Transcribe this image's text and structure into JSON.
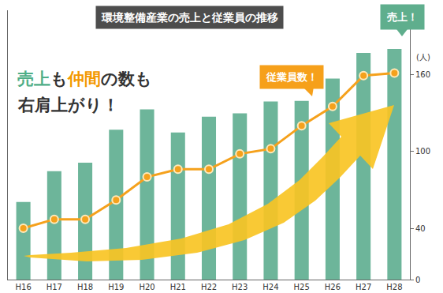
{
  "chart_data": {
    "type": "bar",
    "title": "環境整備産業の売上と従業員の推移",
    "categories": [
      "H16",
      "H17",
      "H18",
      "H19",
      "H20",
      "H21",
      "H22",
      "H23",
      "H24",
      "H25",
      "H26",
      "H27",
      "H28"
    ],
    "series": [
      {
        "type": "bar",
        "color": "#6db59a",
        "values": [
          1.18,
          1.65,
          1.78,
          2.28,
          2.59,
          2.24,
          2.48,
          2.53,
          2.71,
          2.72,
          3.06,
          3.45,
          3.51
        ]
      },
      {
        "type": "line",
        "axis": "y2",
        "color": "#f5a11c",
        "marker": "circle",
        "values": [
          40,
          47,
          47,
          62,
          80,
          86,
          86,
          98,
          102,
          120,
          135,
          159,
          161
        ]
      }
    ],
    "ylim": [
      0,
      4.1
    ],
    "y2lim": [
      0,
      210
    ],
    "y2ticks": [
      0,
      40,
      100,
      160
    ],
    "y2_label": "(人)",
    "grid": false,
    "annotations": [
      {
        "text": [
          "売上",
          "も",
          "仲間",
          "の数も"
        ],
        "colors": [
          "#4fae87",
          "#333333",
          "#f39800",
          "#333333"
        ]
      },
      {
        "text": "右肩上がり！",
        "color": "#333333"
      },
      {
        "text": "従業員数！",
        "color": "#f6a01a"
      },
      {
        "text": "売上！",
        "color": "#5fae8d"
      }
    ]
  }
}
